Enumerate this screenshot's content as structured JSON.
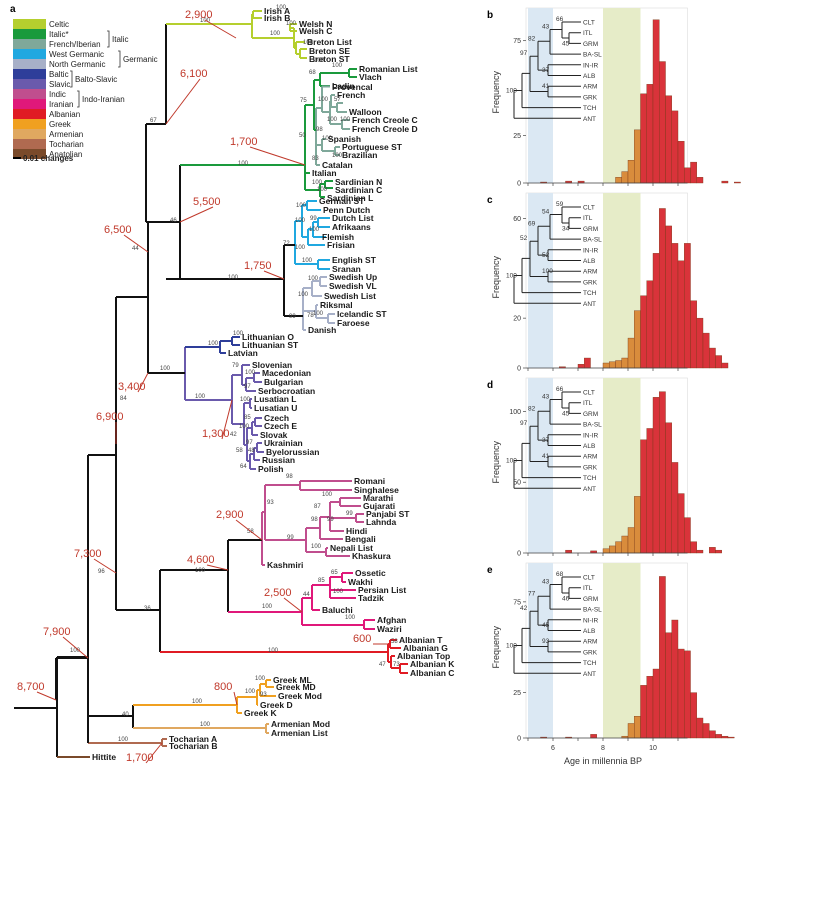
{
  "legend": {
    "panel_letter": "a",
    "items": [
      {
        "label": "Celtic",
        "color": "#b5cf2e"
      },
      {
        "label": "Italic*",
        "color": "#1a9a3c"
      },
      {
        "label": "French/Iberian",
        "color": "#7fa89a"
      },
      {
        "label": "West Germanic",
        "color": "#20a8e0"
      },
      {
        "label": "North Germanic",
        "color": "#a7b0c8"
      },
      {
        "label": "Baltic",
        "color": "#2e3e9a"
      },
      {
        "label": "Slavic",
        "color": "#6a5aac"
      },
      {
        "label": "Indic",
        "color": "#c04e8e"
      },
      {
        "label": "Iranian",
        "color": "#e0187a"
      },
      {
        "label": "Albanian",
        "color": "#e01b24"
      },
      {
        "label": "Greek",
        "color": "#f0a020"
      },
      {
        "label": "Armenian",
        "color": "#e0a860"
      },
      {
        "label": "Tocharian",
        "color": "#b06a50"
      },
      {
        "label": "Anatolian",
        "color": "#7a4a2a"
      }
    ],
    "groups": [
      "Italic",
      "Germanic",
      "Balto-Slavic",
      "Indo-Iranian"
    ],
    "scale_label": "0.01 changes"
  },
  "tree": {
    "taxa": {
      "irish_a": "Irish A",
      "irish_b": "Irish B",
      "welsh_n": "Welsh N",
      "welsh_c": "Welsh C",
      "breton_list": "Breton List",
      "breton_se": "Breton SE",
      "breton_st": "Breton ST",
      "romanian_list": "Romanian List",
      "vlach": "Vlach",
      "ladin": "Ladin",
      "provencal": "Provencal",
      "french": "French",
      "walloon": "Walloon",
      "french_creole_c": "French Creole C",
      "french_creole_d": "French Creole D",
      "spanish": "Spanish",
      "portuguese_st": "Portuguese ST",
      "brazilian": "Brazilian",
      "catalan": "Catalan",
      "italian": "Italian",
      "sardinian_n": "Sardinian N",
      "sardinian_c": "Sardinian C",
      "sardinian_l": "Sardinian L",
      "german_st": "German ST",
      "penn_dutch": "Penn Dutch",
      "dutch_list": "Dutch List",
      "afrikaans": "Afrikaans",
      "flemish": "Flemish",
      "frisian": "Frisian",
      "english_st": "English ST",
      "sranan": "Sranan",
      "swedish_up": "Swedish Up",
      "swedish_vl": "Swedish VL",
      "swedish_list": "Swedish List",
      "riksmal": "Riksmal",
      "icelandic_st": "Icelandic ST",
      "faroese": "Faroese",
      "danish": "Danish",
      "lithuanian_o": "Lithuanian O",
      "lithuanian_st": "Lithuanian ST",
      "latvian": "Latvian",
      "slovenian": "Slovenian",
      "macedonian": "Macedonian",
      "bulgarian": "Bulgarian",
      "serbocroatian": "Serbocroatian",
      "lusatian_l": "Lusatian L",
      "lusatian_u": "Lusatian U",
      "czech": "Czech",
      "czech_e": "Czech E",
      "slovak": "Slovak",
      "ukrainian": "Ukrainian",
      "byelorussian": "Byelorussian",
      "russian": "Russian",
      "polish": "Polish",
      "romani": "Romani",
      "singhalese": "Singhalese",
      "marathi": "Marathi",
      "gujarati": "Gujarati",
      "panjabi_st": "Panjabi ST",
      "lahnda": "Lahnda",
      "hindi": "Hindi",
      "bengali": "Bengali",
      "nepali_list": "Nepali List",
      "khaskura": "Khaskura",
      "kashmiri": "Kashmiri",
      "ossetic": "Ossetic",
      "wakhi": "Wakhi",
      "persian_list": "Persian List",
      "tadzik": "Tadzik",
      "baluchi": "Baluchi",
      "afghan": "Afghan",
      "waziri": "Waziri",
      "albanian_t": "Albanian T",
      "albanian_g": "Albanian G",
      "albanian_top": "Albanian Top",
      "albanian_k": "Albanian K",
      "albanian_c": "Albanian C",
      "greek_ml": "Greek ML",
      "greek_md": "Greek MD",
      "greek_mod": "Greek Mod",
      "greek_d": "Greek D",
      "greek_k": "Greek K",
      "armenian_mod": "Armenian Mod",
      "armenian_list": "Armenian List",
      "tocharian_a": "Tocharian A",
      "tocharian_b": "Tocharian B",
      "hittite": "Hittite"
    },
    "dates": {
      "celtic": "2,900",
      "italoceltic": "6,100",
      "romance": "1,700",
      "germanic_split": "5,500",
      "germanic": "1,750",
      "bs_plus": "6,500",
      "balto_slavic": "3,400",
      "slavic": "1,300",
      "core": "6,900",
      "indic": "2,900",
      "indo_iranian": "4,600",
      "iranian": "2,500",
      "with_albanian": "7,300",
      "albanian": "600",
      "with_tocharian": "7,900",
      "root": "8,700",
      "greek": "800",
      "tocharian": "1,700"
    },
    "supports": {
      "celtic_stem": "100",
      "irish": "100",
      "brythonic": "100",
      "welsh": "100",
      "breton": "100",
      "breton_se_st": "100",
      "italoceltic": "67",
      "romance_stem": "100",
      "rom_vlach": "100",
      "ladin_grp": "68",
      "gallo": "75",
      "french_grp": "100",
      "french_walloon": "57",
      "creole_grp": "100",
      "creoles": "100",
      "ibero": "98",
      "spanish_grp": "100",
      "port_braz": "100",
      "catalan_grp": "83",
      "italian_grp": "50",
      "sardinian": "100",
      "sard_nc": "100",
      "germanic_split": "46",
      "germanic_stem": "100",
      "west_germanic": "72",
      "german_grp": "100",
      "dutch_grp": "100",
      "dutch_afr": "99",
      "dutch_core": "100",
      "frisian_grp": "100",
      "english_grp": "100",
      "north_germanic": "99",
      "swedish_grp": "100",
      "swedish_up_vl": "100",
      "icel_far": "100",
      "riksmal_grp": "78",
      "bs_plus": "44",
      "balto_slavic": "100",
      "baltic": "100",
      "lith": "100",
      "slavic_stem": "100",
      "south_slavic": "79",
      "mac_bul": "100",
      "serbo": "97",
      "lusatian": "100",
      "czech_grp": "85",
      "czech_slovak": "100",
      "east_slavic": "97",
      "ukr_bye": "48",
      "west_east": "58",
      "polish_grp": "64",
      "slavic_core": "42",
      "core": "84",
      "romani_grp": "98",
      "indic_core": "93",
      "marathi_grp": "100",
      "panjabi_grp": "99",
      "indic_mid": "87",
      "hindi_grp": "99",
      "indic_low": "98",
      "nepali_grp": "100",
      "indic_stem": "99",
      "kashmiri_grp": "58",
      "ii_stem": "100",
      "ossetic_grp": "65",
      "iranian_mid": "85",
      "persian_grp": "100",
      "iranian_core": "44",
      "iranian_stem": "100",
      "afghan_grp": "100",
      "with_albanian": "96",
      "ii_albanian": "36",
      "albanian_stem": "100",
      "albanian_t_g": "58",
      "albanian_k_c": "73",
      "albanian_low": "47",
      "with_tocharian": "100",
      "greek_armenian": "40",
      "greek_stem": "100",
      "greek_core": "100",
      "greek_ml_md": "100",
      "greek_mod_grp": "93",
      "armenian_stem": "100",
      "tocharian_stem": "100"
    }
  },
  "histograms": [
    {
      "panel_letter": "b",
      "ylabel": "Frequency",
      "yticks": [
        0,
        25,
        75
      ],
      "ymax": 88,
      "values": [
        0,
        0,
        0.5,
        0,
        0,
        0,
        1,
        0,
        1,
        0,
        0,
        0,
        0,
        0,
        3,
        6,
        12,
        28,
        47,
        52,
        86,
        64,
        46,
        38,
        22,
        8,
        11,
        3,
        0,
        0,
        0,
        1,
        0,
        0.5
      ],
      "inset_supports": [
        "66",
        "43",
        "45",
        "82",
        "97",
        "37",
        "41",
        "100"
      ]
    },
    {
      "panel_letter": "c",
      "ylabel": "Frequency",
      "yticks": [
        0,
        20,
        60
      ],
      "ymax": 67,
      "values": [
        0,
        0,
        0,
        0,
        0,
        0.5,
        0,
        0,
        1.5,
        4,
        0,
        0,
        2,
        2.5,
        3,
        4,
        12,
        23,
        29,
        35,
        46,
        64,
        57,
        50,
        43,
        50,
        27,
        20,
        14,
        8,
        5,
        2,
        0,
        0
      ],
      "inset_supports": [
        "59",
        "54",
        "34",
        "69",
        "52",
        "52",
        "100",
        "100"
      ]
    },
    {
      "panel_letter": "d",
      "ylabel": "Frequency",
      "yticks": [
        0,
        50,
        100
      ],
      "ymax": 118,
      "values": [
        0,
        0,
        0,
        0,
        0,
        0,
        2,
        0,
        0,
        0,
        1.5,
        0,
        3,
        5,
        8,
        12,
        18,
        40,
        80,
        88,
        110,
        114,
        92,
        64,
        42,
        25,
        8,
        2,
        0,
        4,
        2,
        0,
        0,
        0
      ],
      "inset_supports": [
        "66",
        "43",
        "45",
        "82",
        "97",
        "37",
        "41",
        "100"
      ]
    },
    {
      "panel_letter": "e",
      "ylabel": "Frequency",
      "yticks": [
        0,
        25,
        75
      ],
      "ymax": 92,
      "values": [
        0,
        0,
        0.5,
        0,
        0,
        0,
        0.5,
        0,
        0,
        0,
        2,
        0,
        0,
        0,
        0,
        1,
        8,
        12,
        29,
        34,
        38,
        89,
        58,
        65,
        49,
        48,
        25,
        11,
        8,
        4,
        2,
        1,
        0.5,
        0
      ],
      "inset_supports": [
        "68",
        "43",
        "46",
        "77",
        "42",
        "45",
        "93",
        "100"
      ]
    }
  ],
  "histogram_common": {
    "xlabel": "Age in millennia BP",
    "xticks": [
      6,
      8,
      10
    ],
    "xmin": 5,
    "bin_width": 0.25,
    "inset_taxa": [
      "CLT",
      "ITL",
      "GRM",
      "BA-SL",
      "IN-IR",
      "ALB",
      "ARM",
      "GRK",
      "TCH",
      "ANT"
    ],
    "inset_taxa_e": [
      "CLT",
      "ITL",
      "GRM",
      "BA-SL",
      "NI-IR",
      "ALB",
      "ARM",
      "GRK",
      "TCH",
      "ANT"
    ],
    "blue_band": [
      5,
      6
    ],
    "green_band": [
      8,
      9.5
    ],
    "colors": {
      "orange": "#d98c3c",
      "red": "#d9333a",
      "blue_band": "#dbe8f3",
      "green_band": "#e6ecc8"
    }
  }
}
